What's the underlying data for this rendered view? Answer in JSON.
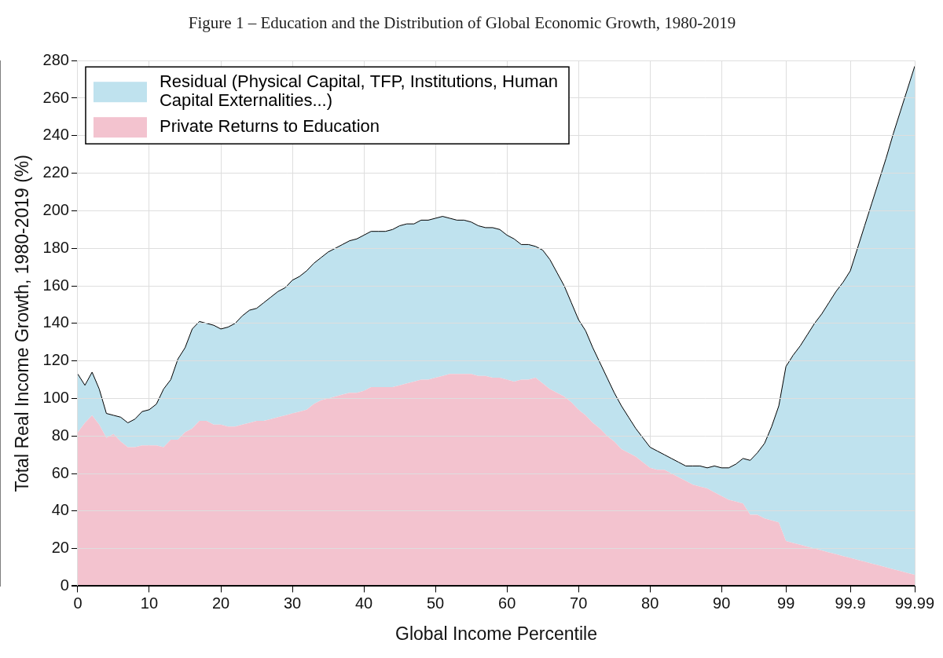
{
  "chart_data": {
    "type": "area",
    "title": "Figure 1 – Education and the Distribution of Global Economic Growth, 1980-2019",
    "x_label": "Global Income Percentile",
    "y_label": "Total Real Income Growth, 1980-2019 (%)",
    "categories": [
      "0",
      null,
      null,
      null,
      null,
      null,
      null,
      null,
      null,
      null,
      "10",
      null,
      null,
      null,
      null,
      null,
      null,
      null,
      null,
      null,
      "20",
      null,
      null,
      null,
      null,
      null,
      null,
      null,
      null,
      null,
      "30",
      null,
      null,
      null,
      null,
      null,
      null,
      null,
      null,
      null,
      "40",
      null,
      null,
      null,
      null,
      null,
      null,
      null,
      null,
      null,
      "50",
      null,
      null,
      null,
      null,
      null,
      null,
      null,
      null,
      null,
      "60",
      null,
      null,
      null,
      null,
      null,
      null,
      null,
      null,
      null,
      "70",
      null,
      null,
      null,
      null,
      null,
      null,
      null,
      null,
      null,
      "80",
      null,
      null,
      null,
      null,
      null,
      null,
      null,
      null,
      null,
      "90",
      null,
      null,
      null,
      null,
      null,
      null,
      null,
      null,
      "99",
      null,
      null,
      null,
      null,
      null,
      null,
      null,
      null,
      "99.9",
      null,
      null,
      null,
      null,
      null,
      null,
      null,
      null,
      "99.99"
    ],
    "series": [
      {
        "name": "Private Returns to Education",
        "color": "#f3c3cf",
        "values": [
          82,
          87,
          91,
          86,
          79,
          81,
          77,
          74,
          74,
          75,
          75,
          75,
          74,
          78,
          78,
          82,
          84,
          88,
          88,
          86,
          86,
          85,
          85,
          86,
          87,
          88,
          88,
          89,
          90,
          91,
          92,
          93,
          94,
          97,
          99,
          100,
          101,
          102,
          103,
          103,
          104,
          106,
          106,
          106,
          106,
          107,
          108,
          109,
          110,
          110,
          111,
          112,
          113,
          113,
          113,
          113,
          112,
          112,
          111,
          111,
          110,
          109,
          110,
          110,
          111,
          108,
          105,
          103,
          101,
          98,
          94,
          91,
          87,
          84,
          80,
          77,
          73,
          71,
          69,
          66,
          63,
          62,
          62,
          60,
          58,
          56,
          54,
          53,
          52,
          50,
          48,
          46,
          45,
          44,
          38,
          38,
          36,
          35,
          34,
          24,
          23,
          22,
          21,
          20,
          19,
          18,
          17,
          16,
          15,
          14,
          13,
          12,
          11,
          10,
          9,
          8,
          7,
          6
        ]
      },
      {
        "name": "Residual (Physical Capital, TFP, Institutions, Human Capital Externalities...)",
        "color": "#bfe2ee",
        "values": [
          31,
          20,
          23,
          19,
          13,
          10,
          13,
          13,
          15,
          18,
          19,
          22,
          31,
          32,
          43,
          45,
          53,
          53,
          52,
          53,
          51,
          53,
          55,
          58,
          60,
          60,
          63,
          65,
          67,
          68,
          71,
          72,
          74,
          75,
          76,
          78,
          79,
          80,
          81,
          82,
          83,
          83,
          83,
          83,
          84,
          85,
          85,
          84,
          85,
          85,
          85,
          85,
          83,
          82,
          82,
          81,
          80,
          79,
          80,
          79,
          77,
          76,
          72,
          72,
          70,
          71,
          69,
          64,
          59,
          53,
          48,
          45,
          40,
          35,
          31,
          26,
          23,
          19,
          15,
          13,
          11,
          10,
          8,
          8,
          8,
          8,
          10,
          11,
          11,
          14,
          15,
          17,
          20,
          24,
          29,
          33,
          40,
          50,
          62,
          93,
          100,
          106,
          113,
          120,
          126,
          133,
          140,
          146,
          153,
          166,
          179,
          192,
          205,
          218,
          232,
          245,
          258,
          271
        ]
      }
    ],
    "ylim": [
      0,
      280
    ],
    "yticks": [
      0,
      20,
      40,
      60,
      80,
      100,
      120,
      140,
      160,
      180,
      200,
      220,
      240,
      260,
      280
    ],
    "stacked": true,
    "grid": true,
    "legend": "upper left"
  }
}
